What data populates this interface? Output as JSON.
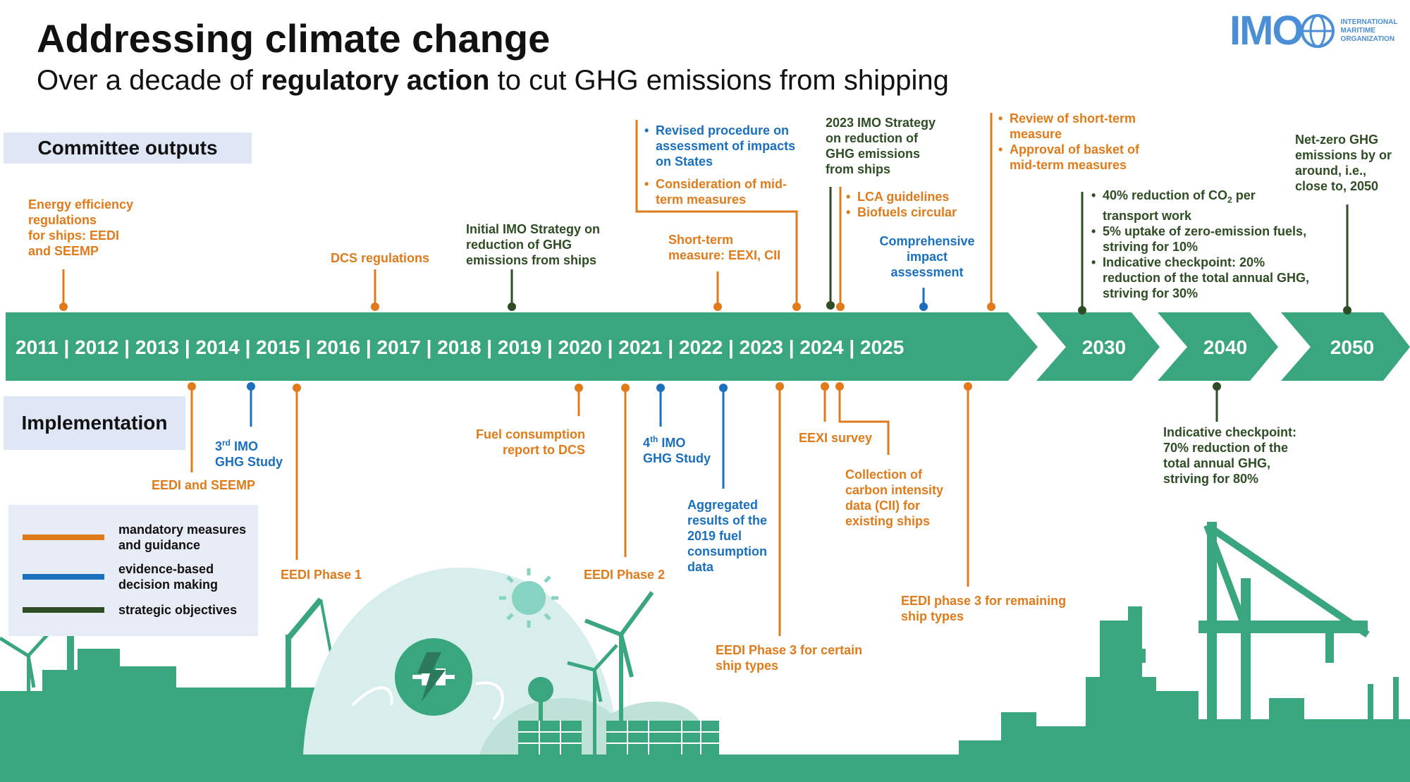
{
  "header": {
    "title": "Addressing climate change",
    "subtitle_pre": "Over a decade of ",
    "subtitle_bold": "regulatory action",
    "subtitle_post": " to cut GHG emissions from shipping"
  },
  "logo": {
    "mark": "IMO",
    "line1": "INTERNATIONAL",
    "line2": "MARITIME",
    "line3": "ORGANIZATION"
  },
  "sections": {
    "committee": "Committee outputs",
    "implementation": "Implementation"
  },
  "legend": [
    {
      "label": "mandatory measures and guidance",
      "color": "#e07b1b"
    },
    {
      "label": "evidence-based decision making",
      "color": "#1a6fbf"
    },
    {
      "label": "strategic objectives",
      "color": "#2e4d24"
    }
  ],
  "colors": {
    "arrow": "#3aa67e",
    "silhouette": "#3aa67e",
    "orange": "#e07b1b",
    "blue": "#1a6fbf",
    "green": "#2e4d24"
  },
  "timeline": {
    "years_main": "2011 | 2012 | 2013 | 2014 | 2015 | 2016 | 2017 | 2018 | 2019 | 2020 | 2021 | 2022 | 2023 | 2024 | 2025",
    "y2030": "2030",
    "y2040": "2040",
    "y2050": "2050"
  },
  "above": {
    "energy_eff": [
      "Energy efficiency",
      "regulations",
      "for ships: EEDI",
      "and SEEMP"
    ],
    "dcs": "DCS regulations",
    "initial_strategy": [
      "Initial IMO Strategy on",
      "reduction of GHG",
      "emissions from ships"
    ],
    "revised_procedure": [
      "Revised procedure on",
      "assessment of impacts",
      "on States"
    ],
    "mid_term_consideration": [
      "Consideration of mid-",
      "term measures"
    ],
    "short_term": [
      "Short-term",
      "measure: EEXI,  CII"
    ],
    "strategy_2023": [
      "2023 IMO Strategy",
      "on reduction of",
      "GHG  emissions",
      "from ships"
    ],
    "lca": "LCA guidelines",
    "biofuels": "Biofuels circular",
    "cia": [
      "Comprehensive",
      "impact",
      "assessment"
    ],
    "review_short": [
      "Review of short-term",
      "measure"
    ],
    "approval_basket": [
      "Approval of basket of",
      "mid-term measures"
    ],
    "goals_2030": {
      "a1": "40% reduction of CO",
      "a_sub": "2",
      "a2": " per",
      "a3": "transport work",
      "b1": "5% uptake of zero-emission fuels,",
      "b2": "striving for 10%",
      "c1": "Indicative checkpoint: 20%",
      "c2": "reduction of the total annual GHG,",
      "c3": "striving for 30%"
    },
    "net_zero": [
      "Net-zero GHG",
      "emissions by or",
      "around, i.e.,",
      "close to, 2050"
    ]
  },
  "below": {
    "eedi_seemp": "EEDI  and SEEMP",
    "ghg3_pre": "3",
    "ghg3_sup": "rd",
    "ghg3_post": " IMO",
    "ghg3_line2": "GHG  Study",
    "eedi_p1": "EEDI  Phase 1",
    "fuel_report": [
      "Fuel consumption",
      "report to DCS"
    ],
    "eedi_p2": "EEDI  Phase 2",
    "ghg4_pre": "4",
    "ghg4_sup": "th",
    "ghg4_post": " IMO",
    "ghg4_line2": "GHG  Study",
    "aggregated": [
      "Aggregated",
      "results of the",
      "2019 fuel",
      "consumption",
      "data"
    ],
    "eedi_p3_certain": [
      "EEDI  Phase 3 for certain",
      "ship types"
    ],
    "eexi_survey": "EEXI  survey",
    "cii_collection": [
      "Collection  of",
      "carbon intensity",
      "data (CII) for",
      "existing ships"
    ],
    "eedi_p3_remaining": [
      "EEDI  phase 3 for remaining",
      "ship types"
    ],
    "checkpoint_2040": [
      "Indicative checkpoint:",
      "70% reduction of the",
      "total annual GHG,",
      "striving for 80%"
    ]
  }
}
